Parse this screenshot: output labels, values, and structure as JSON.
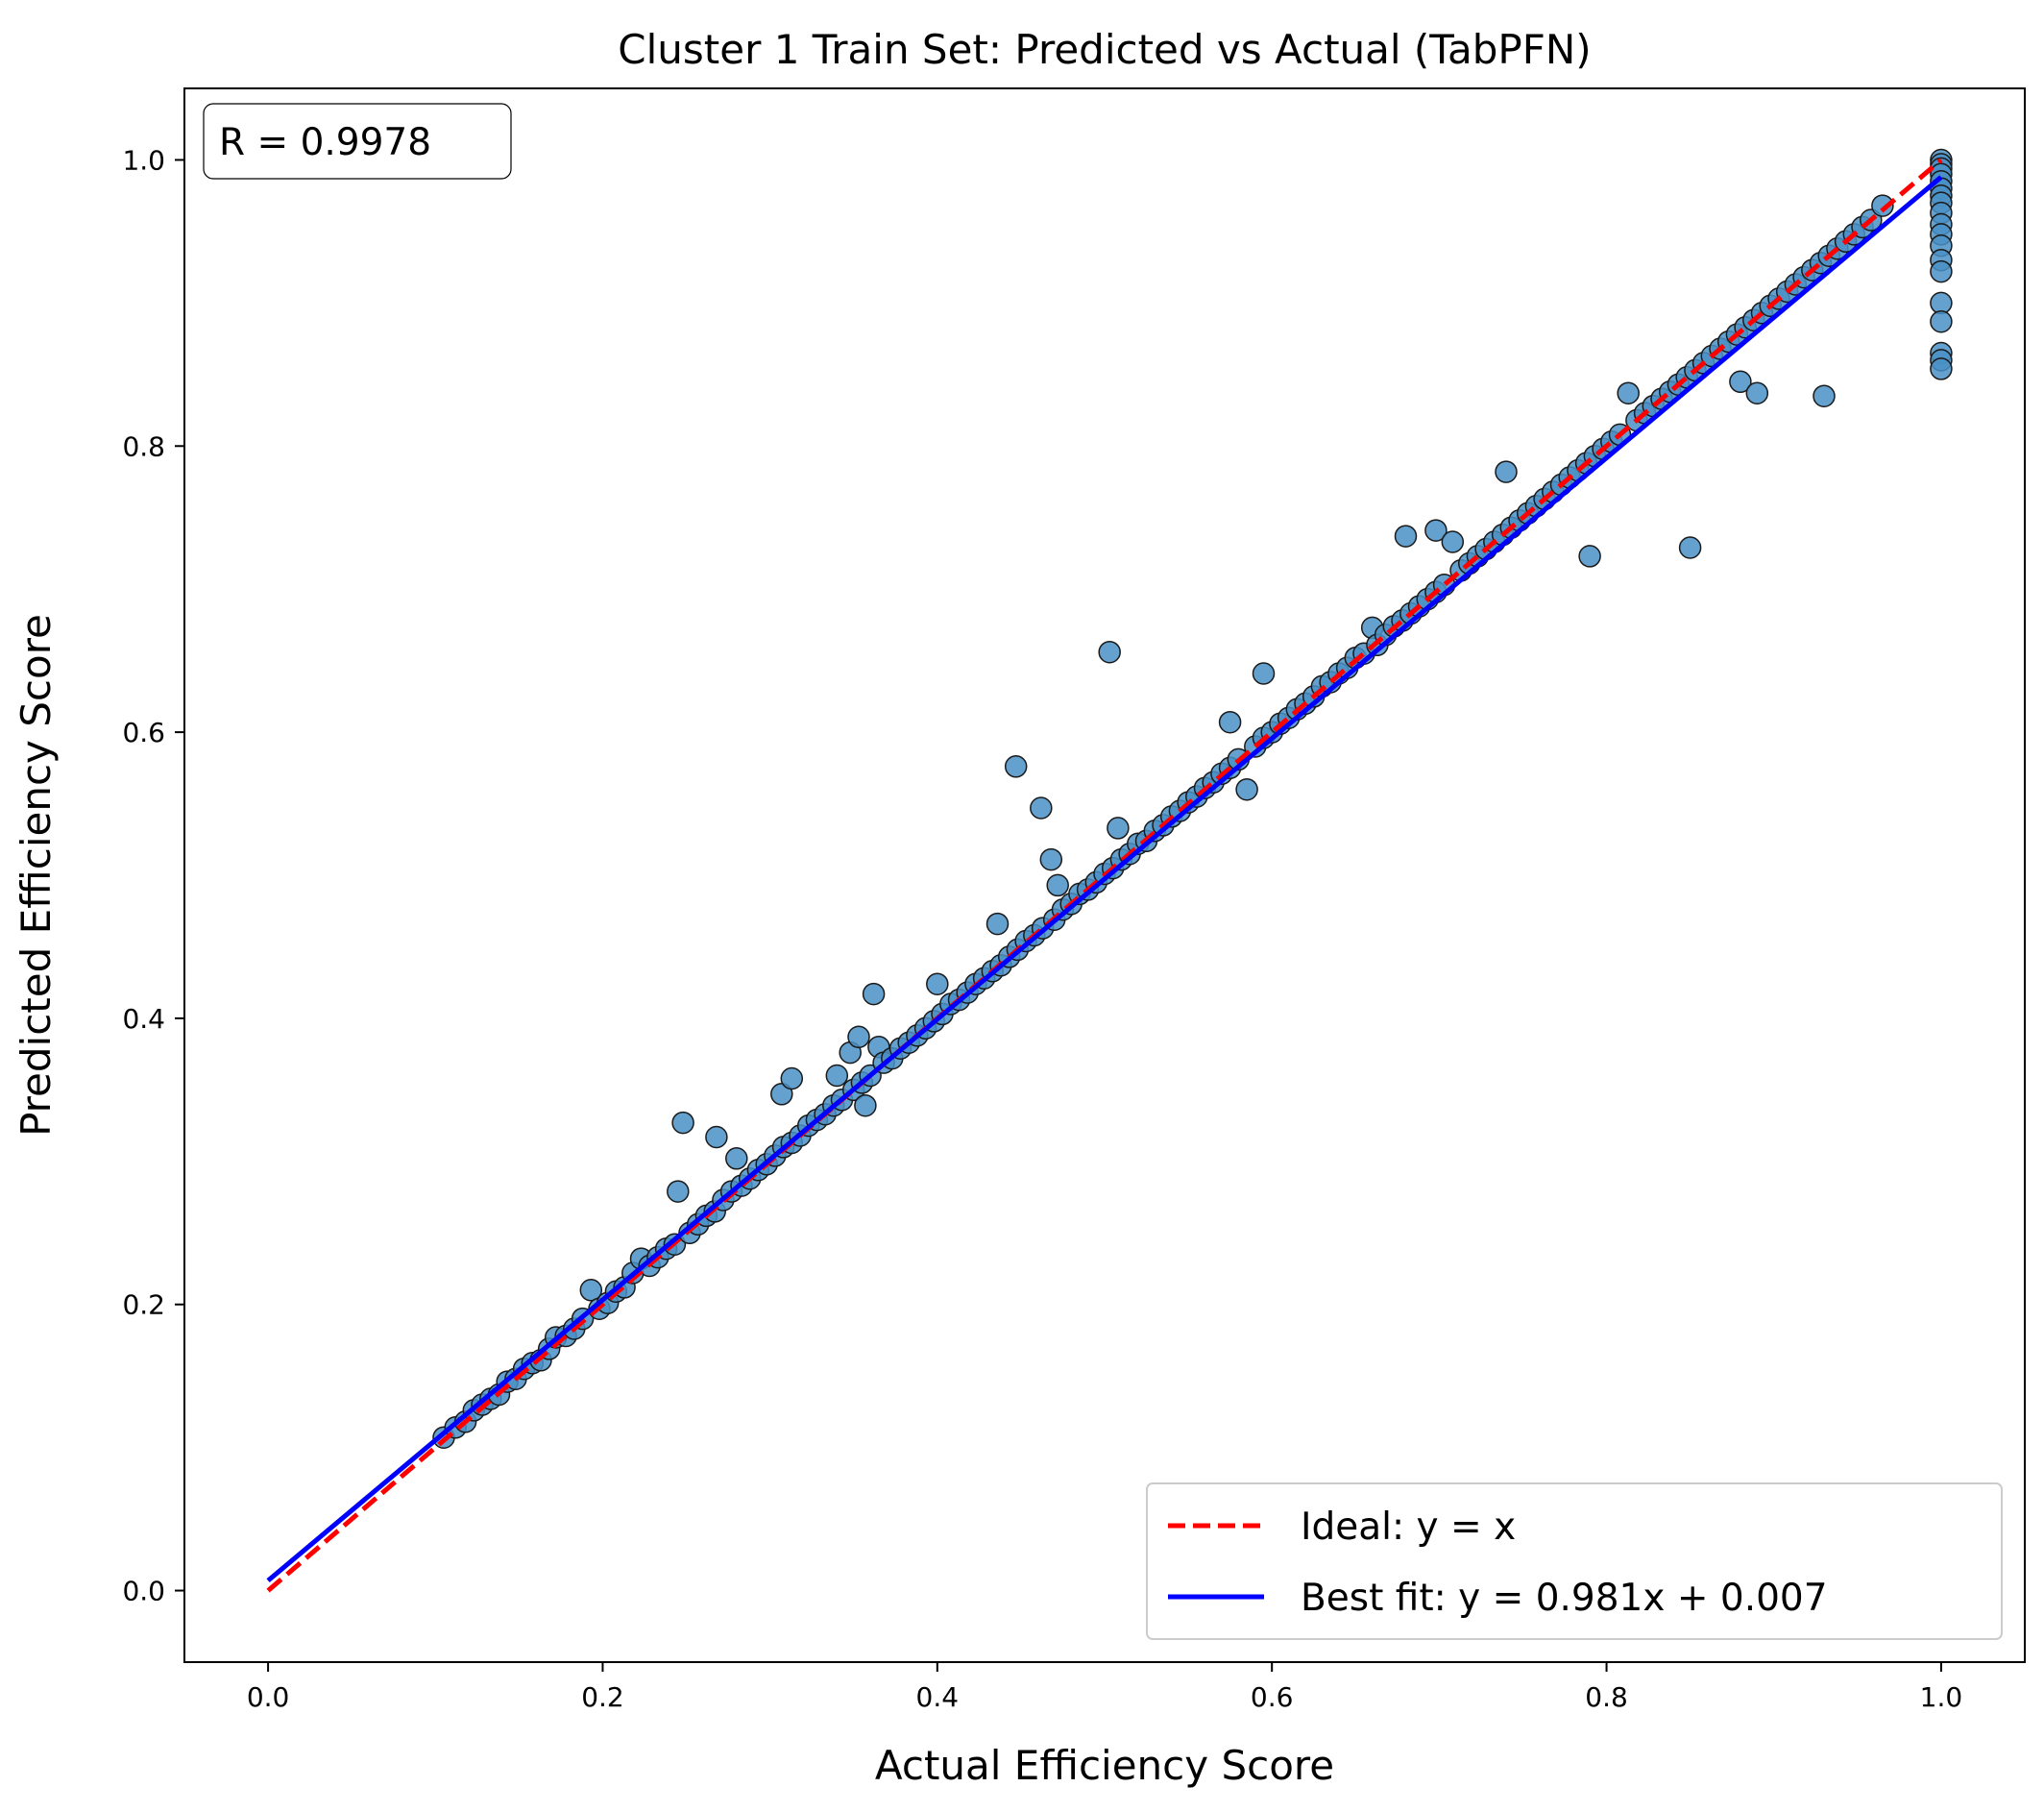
{
  "chart_data": {
    "type": "scatter",
    "title": "Cluster 1 Train Set: Predicted vs Actual (TabPFN)",
    "xlabel": "Actual Efficiency Score",
    "ylabel": "Predicted Efficiency Score",
    "xlim": [
      -0.05,
      1.05
    ],
    "ylim": [
      -0.05,
      1.05
    ],
    "xticks": [
      "0.0",
      "0.2",
      "0.4",
      "0.6",
      "0.8",
      "1.0"
    ],
    "yticks": [
      "0.0",
      "0.2",
      "0.4",
      "0.6",
      "0.8",
      "1.0"
    ],
    "grid": false,
    "annotation": "R = 0.9978",
    "legend": {
      "placement": "bottom-right",
      "entries": [
        {
          "label": "Ideal: y = x",
          "color": "#ff0000",
          "style": "dashed"
        },
        {
          "label": "Best fit: y = 0.981x + 0.007",
          "color": "#0000ff",
          "style": "solid"
        }
      ]
    },
    "lines": [
      {
        "name": "ideal",
        "slope": 1.0,
        "intercept": 0.0,
        "x_range": [
          0,
          1
        ],
        "color": "#ff0000",
        "style": "dashed"
      },
      {
        "name": "best-fit",
        "slope": 0.981,
        "intercept": 0.007,
        "x_range": [
          0,
          1
        ],
        "color": "#0000ff",
        "style": "solid"
      }
    ],
    "point_color": "#4a90c6",
    "points": [
      [
        0.105,
        0.107
      ],
      [
        0.112,
        0.114
      ],
      [
        0.118,
        0.118
      ],
      [
        0.123,
        0.126
      ],
      [
        0.128,
        0.13
      ],
      [
        0.133,
        0.134
      ],
      [
        0.138,
        0.137
      ],
      [
        0.143,
        0.146
      ],
      [
        0.148,
        0.148
      ],
      [
        0.153,
        0.155
      ],
      [
        0.158,
        0.159
      ],
      [
        0.163,
        0.161
      ],
      [
        0.168,
        0.169
      ],
      [
        0.172,
        0.177
      ],
      [
        0.178,
        0.178
      ],
      [
        0.183,
        0.183
      ],
      [
        0.188,
        0.19
      ],
      [
        0.193,
        0.21
      ],
      [
        0.198,
        0.197
      ],
      [
        0.203,
        0.201
      ],
      [
        0.208,
        0.209
      ],
      [
        0.213,
        0.212
      ],
      [
        0.218,
        0.222
      ],
      [
        0.223,
        0.232
      ],
      [
        0.228,
        0.227
      ],
      [
        0.233,
        0.233
      ],
      [
        0.238,
        0.239
      ],
      [
        0.243,
        0.242
      ],
      [
        0.245,
        0.279
      ],
      [
        0.248,
        0.327
      ],
      [
        0.252,
        0.25
      ],
      [
        0.257,
        0.256
      ],
      [
        0.262,
        0.262
      ],
      [
        0.267,
        0.265
      ],
      [
        0.268,
        0.317
      ],
      [
        0.272,
        0.273
      ],
      [
        0.277,
        0.279
      ],
      [
        0.28,
        0.302
      ],
      [
        0.283,
        0.283
      ],
      [
        0.288,
        0.288
      ],
      [
        0.293,
        0.294
      ],
      [
        0.298,
        0.298
      ],
      [
        0.303,
        0.304
      ],
      [
        0.307,
        0.347
      ],
      [
        0.308,
        0.31
      ],
      [
        0.313,
        0.358
      ],
      [
        0.313,
        0.313
      ],
      [
        0.318,
        0.318
      ],
      [
        0.323,
        0.325
      ],
      [
        0.328,
        0.329
      ],
      [
        0.333,
        0.333
      ],
      [
        0.338,
        0.339
      ],
      [
        0.34,
        0.36
      ],
      [
        0.343,
        0.343
      ],
      [
        0.348,
        0.376
      ],
      [
        0.35,
        0.35
      ],
      [
        0.353,
        0.387
      ],
      [
        0.355,
        0.355
      ],
      [
        0.357,
        0.339
      ],
      [
        0.36,
        0.36
      ],
      [
        0.362,
        0.417
      ],
      [
        0.365,
        0.38
      ],
      [
        0.368,
        0.369
      ],
      [
        0.373,
        0.372
      ],
      [
        0.378,
        0.379
      ],
      [
        0.383,
        0.383
      ],
      [
        0.388,
        0.388
      ],
      [
        0.393,
        0.393
      ],
      [
        0.398,
        0.398
      ],
      [
        0.4,
        0.424
      ],
      [
        0.403,
        0.403
      ],
      [
        0.408,
        0.41
      ],
      [
        0.413,
        0.413
      ],
      [
        0.418,
        0.418
      ],
      [
        0.423,
        0.424
      ],
      [
        0.428,
        0.428
      ],
      [
        0.433,
        0.433
      ],
      [
        0.436,
        0.466
      ],
      [
        0.438,
        0.437
      ],
      [
        0.443,
        0.443
      ],
      [
        0.447,
        0.576
      ],
      [
        0.448,
        0.448
      ],
      [
        0.453,
        0.454
      ],
      [
        0.458,
        0.458
      ],
      [
        0.462,
        0.547
      ],
      [
        0.463,
        0.463
      ],
      [
        0.468,
        0.511
      ],
      [
        0.47,
        0.469
      ],
      [
        0.472,
        0.493
      ],
      [
        0.475,
        0.476
      ],
      [
        0.48,
        0.48
      ],
      [
        0.485,
        0.487
      ],
      [
        0.49,
        0.49
      ],
      [
        0.495,
        0.495
      ],
      [
        0.5,
        0.501
      ],
      [
        0.503,
        0.656
      ],
      [
        0.505,
        0.505
      ],
      [
        0.508,
        0.533
      ],
      [
        0.51,
        0.511
      ],
      [
        0.515,
        0.515
      ],
      [
        0.52,
        0.522
      ],
      [
        0.525,
        0.524
      ],
      [
        0.53,
        0.531
      ],
      [
        0.535,
        0.535
      ],
      [
        0.54,
        0.541
      ],
      [
        0.545,
        0.545
      ],
      [
        0.55,
        0.551
      ],
      [
        0.555,
        0.555
      ],
      [
        0.56,
        0.561
      ],
      [
        0.565,
        0.565
      ],
      [
        0.57,
        0.571
      ],
      [
        0.575,
        0.607
      ],
      [
        0.575,
        0.575
      ],
      [
        0.58,
        0.581
      ],
      [
        0.585,
        0.56
      ],
      [
        0.59,
        0.59
      ],
      [
        0.595,
        0.641
      ],
      [
        0.595,
        0.596
      ],
      [
        0.6,
        0.6
      ],
      [
        0.605,
        0.606
      ],
      [
        0.61,
        0.61
      ],
      [
        0.615,
        0.616
      ],
      [
        0.62,
        0.62
      ],
      [
        0.625,
        0.625
      ],
      [
        0.63,
        0.632
      ],
      [
        0.635,
        0.635
      ],
      [
        0.64,
        0.641
      ],
      [
        0.645,
        0.645
      ],
      [
        0.65,
        0.652
      ],
      [
        0.655,
        0.655
      ],
      [
        0.66,
        0.673
      ],
      [
        0.663,
        0.661
      ],
      [
        0.668,
        0.668
      ],
      [
        0.673,
        0.674
      ],
      [
        0.678,
        0.678
      ],
      [
        0.68,
        0.737
      ],
      [
        0.683,
        0.683
      ],
      [
        0.688,
        0.688
      ],
      [
        0.693,
        0.693
      ],
      [
        0.698,
        0.741
      ],
      [
        0.698,
        0.698
      ],
      [
        0.703,
        0.703
      ],
      [
        0.708,
        0.733
      ],
      [
        0.713,
        0.713
      ],
      [
        0.718,
        0.718
      ],
      [
        0.723,
        0.723
      ],
      [
        0.728,
        0.728
      ],
      [
        0.733,
        0.733
      ],
      [
        0.738,
        0.738
      ],
      [
        0.74,
        0.782
      ],
      [
        0.743,
        0.743
      ],
      [
        0.748,
        0.748
      ],
      [
        0.753,
        0.753
      ],
      [
        0.758,
        0.758
      ],
      [
        0.763,
        0.763
      ],
      [
        0.768,
        0.768
      ],
      [
        0.773,
        0.773
      ],
      [
        0.778,
        0.778
      ],
      [
        0.783,
        0.783
      ],
      [
        0.788,
        0.788
      ],
      [
        0.79,
        0.723
      ],
      [
        0.793,
        0.793
      ],
      [
        0.798,
        0.798
      ],
      [
        0.803,
        0.803
      ],
      [
        0.808,
        0.808
      ],
      [
        0.813,
        0.837
      ],
      [
        0.818,
        0.818
      ],
      [
        0.823,
        0.823
      ],
      [
        0.828,
        0.828
      ],
      [
        0.833,
        0.833
      ],
      [
        0.838,
        0.838
      ],
      [
        0.843,
        0.843
      ],
      [
        0.848,
        0.848
      ],
      [
        0.85,
        0.729
      ],
      [
        0.853,
        0.853
      ],
      [
        0.858,
        0.858
      ],
      [
        0.863,
        0.863
      ],
      [
        0.868,
        0.868
      ],
      [
        0.873,
        0.873
      ],
      [
        0.878,
        0.878
      ],
      [
        0.88,
        0.845
      ],
      [
        0.883,
        0.883
      ],
      [
        0.888,
        0.888
      ],
      [
        0.89,
        0.837
      ],
      [
        0.893,
        0.893
      ],
      [
        0.898,
        0.898
      ],
      [
        0.903,
        0.903
      ],
      [
        0.908,
        0.908
      ],
      [
        0.913,
        0.913
      ],
      [
        0.918,
        0.918
      ],
      [
        0.923,
        0.923
      ],
      [
        0.928,
        0.928
      ],
      [
        0.93,
        0.835
      ],
      [
        0.933,
        0.933
      ],
      [
        0.938,
        0.938
      ],
      [
        0.943,
        0.943
      ],
      [
        0.948,
        0.948
      ],
      [
        0.953,
        0.953
      ],
      [
        0.958,
        0.958
      ],
      [
        0.965,
        0.968
      ],
      [
        1.0,
        1.0
      ],
      [
        1.0,
        0.997
      ],
      [
        1.0,
        0.994
      ],
      [
        1.0,
        0.99
      ],
      [
        1.0,
        0.985
      ],
      [
        1.0,
        0.98
      ],
      [
        1.0,
        0.975
      ],
      [
        1.0,
        0.97
      ],
      [
        1.0,
        0.963
      ],
      [
        1.0,
        0.955
      ],
      [
        1.0,
        0.948
      ],
      [
        1.0,
        0.94
      ],
      [
        1.0,
        0.93
      ],
      [
        1.0,
        0.922
      ],
      [
        1.0,
        0.9
      ],
      [
        1.0,
        0.887
      ],
      [
        1.0,
        0.865
      ],
      [
        1.0,
        0.86
      ],
      [
        1.0,
        0.854
      ]
    ]
  }
}
